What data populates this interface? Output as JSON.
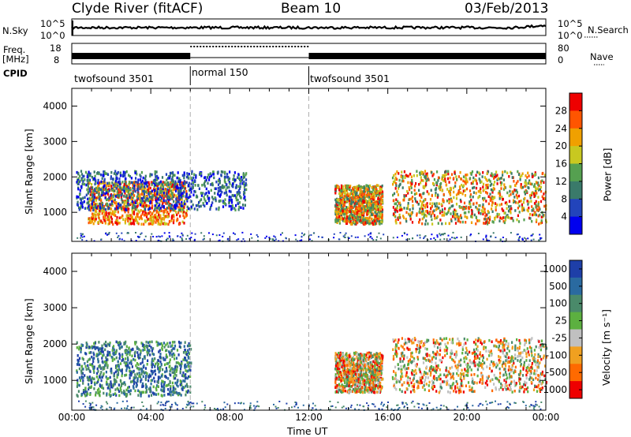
{
  "header": {
    "station": "Clyde River (fitACF)",
    "beam": "Beam 10",
    "date": "03/Feb/2013"
  },
  "left_labels": {
    "nsky": "N.Sky",
    "freq": "Freq.",
    "freq_unit": "[MHz]",
    "cpid": "CPID"
  },
  "right_labels": {
    "nsearch": "N.Search",
    "nave": "Nave"
  },
  "xlabel": "Time UT",
  "chart_data": [
    {
      "type": "line",
      "panel": "noise",
      "yticks_left": [
        "10^5",
        "10^0"
      ],
      "yticks_right": [
        "10^5",
        "10^0"
      ],
      "series": [
        {
          "name": "N.Sky",
          "approx_log_level": 3.3
        }
      ]
    },
    {
      "type": "line",
      "panel": "frequency",
      "yticks_left": [
        "18",
        "8"
      ],
      "yticks_right": [
        "80",
        "0"
      ],
      "segments": [
        {
          "start_hour": 0,
          "end_hour": 6,
          "freq_band": "high",
          "nave": "high"
        },
        {
          "start_hour": 6,
          "end_hour": 12,
          "freq_band": "low",
          "nave": "dotted-high"
        },
        {
          "start_hour": 12,
          "end_hour": 24,
          "freq_band": "high",
          "nave": "high"
        }
      ]
    },
    {
      "type": "table",
      "panel": "cpid",
      "modes": [
        {
          "label": "twofsound 3501",
          "start_hour": 0
        },
        {
          "label": "normal 150",
          "start_hour": 6
        },
        {
          "label": "twofsound 3501",
          "start_hour": 12
        }
      ]
    },
    {
      "type": "heatmap",
      "panel": "power",
      "ylabel": "Slant Range [km]",
      "yticks": [
        1000,
        2000,
        3000,
        4000
      ],
      "ylim": [
        180,
        4500
      ],
      "xticks": [
        "00:00",
        "04:00",
        "08:00",
        "12:00",
        "16:00",
        "20:00",
        "00:00"
      ],
      "xlim_hours": [
        0,
        24
      ],
      "colorbar": {
        "label": "Power [dB]",
        "ticks": [
          4,
          8,
          12,
          16,
          20,
          24,
          28
        ]
      },
      "regions": [
        {
          "start_hour": 0.8,
          "end_hour": 5.8,
          "range_low": 700,
          "range_high": 1900,
          "level": "high"
        },
        {
          "start_hour": 0.2,
          "end_hour": 8.8,
          "range_low": 1100,
          "range_high": 2200,
          "level": "low"
        },
        {
          "start_hour": 13.3,
          "end_hour": 15.7,
          "range_low": 700,
          "range_high": 1800,
          "level": "mid"
        },
        {
          "start_hour": 16.2,
          "end_hour": 24,
          "range_low": 700,
          "range_high": 2200,
          "level": "mid-high"
        }
      ]
    },
    {
      "type": "heatmap",
      "panel": "velocity",
      "ylabel": "Slant Range [km]",
      "yticks": [
        1000,
        2000,
        3000,
        4000
      ],
      "ylim": [
        180,
        4500
      ],
      "xticks": [
        "00:00",
        "04:00",
        "08:00",
        "12:00",
        "16:00",
        "20:00",
        "00:00"
      ],
      "xlim_hours": [
        0,
        24
      ],
      "colorbar": {
        "label": "Velocity [m s⁻¹]",
        "ticks": [
          1000,
          500,
          100,
          25,
          -25,
          -100,
          -500,
          -1000
        ]
      },
      "regions": [
        {
          "start_hour": 0.2,
          "end_hour": 6.0,
          "range_low": 600,
          "range_high": 2100,
          "level": "positive"
        },
        {
          "start_hour": 13.3,
          "end_hour": 15.7,
          "range_low": 700,
          "range_high": 1800,
          "level": "negative"
        },
        {
          "start_hour": 16.2,
          "end_hour": 24,
          "range_low": 700,
          "range_high": 2200,
          "level": "negative"
        }
      ]
    }
  ],
  "colors": {
    "power_scale": [
      "#0000ee",
      "#2244bb",
      "#3a7a6a",
      "#55a050",
      "#c8c820",
      "#f0a000",
      "#ff5500",
      "#ee0000"
    ],
    "velocity_scale": [
      "#1e3fa8",
      "#2a6aa0",
      "#4a8a6a",
      "#5cb040",
      "#c0c0c0",
      "#f0a020",
      "#ff6a00",
      "#ee0000"
    ],
    "dashed_divider": "#b0b0b0"
  }
}
